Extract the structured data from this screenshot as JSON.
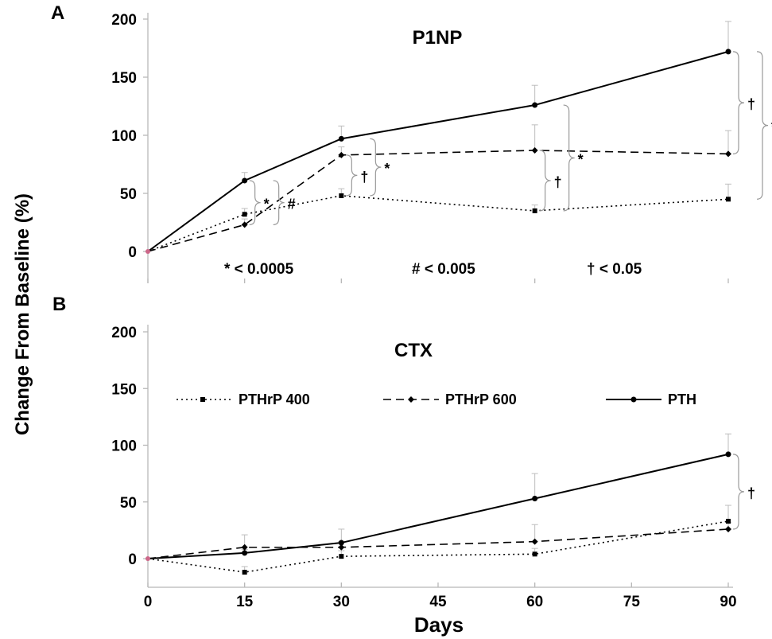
{
  "figure": {
    "ylabel": "Change From Baseline (%)",
    "xlabel": "Days"
  },
  "chart_data": [
    {
      "panel": "A",
      "type": "line",
      "title": "P1NP",
      "x": [
        0,
        15,
        30,
        60,
        90
      ],
      "xlim": [
        0,
        90
      ],
      "ylim": [
        0,
        200
      ],
      "yticks": [
        "0",
        "50",
        "100",
        "150",
        "200"
      ],
      "xticks": [],
      "series": [
        {
          "name": "PTHrP 400",
          "style": "dotted",
          "marker": "square",
          "values": [
            0,
            32,
            48,
            35,
            45
          ],
          "err_upper": [
            0,
            37,
            54,
            40,
            58
          ]
        },
        {
          "name": "PTHrP 600",
          "style": "dashed",
          "marker": "diamond",
          "values": [
            0,
            23,
            83,
            87,
            84
          ],
          "err_upper": [
            0,
            28,
            90,
            109,
            104
          ]
        },
        {
          "name": "PTH",
          "style": "solid",
          "marker": "circle",
          "values": [
            0,
            61,
            97,
            126,
            172
          ],
          "err_upper": [
            0,
            68,
            108,
            143,
            198
          ]
        }
      ],
      "annotations": [
        {
          "symbol": "*",
          "x": 15,
          "from": 23,
          "to": 61
        },
        {
          "symbol": "#",
          "x": 15,
          "from": 23,
          "to": 61
        },
        {
          "symbol": "†",
          "x": 30,
          "from": 48,
          "to": 83
        },
        {
          "symbol": "*",
          "x": 30,
          "from": 48,
          "to": 97
        },
        {
          "symbol": "†",
          "x": 60,
          "from": 35,
          "to": 87
        },
        {
          "symbol": "*",
          "x": 60,
          "from": 35,
          "to": 126
        },
        {
          "symbol": "†",
          "x": 90,
          "from": 84,
          "to": 172
        },
        {
          "symbol": "*",
          "x": 90,
          "from": 45,
          "to": 172
        }
      ],
      "footnotes": [
        "* < 0.0005",
        "# < 0.005",
        "† < 0.05"
      ]
    },
    {
      "panel": "B",
      "type": "line",
      "title": "CTX",
      "x": [
        0,
        15,
        30,
        60,
        90
      ],
      "xlim": [
        0,
        90
      ],
      "ylim": [
        -20,
        200
      ],
      "yticks": [
        "0",
        "50",
        "100",
        "150",
        "200"
      ],
      "xticks": [
        "0",
        "15",
        "30",
        "45",
        "60",
        "75",
        "90"
      ],
      "legend": "top",
      "series": [
        {
          "name": "PTHrP 400",
          "style": "dotted",
          "marker": "square",
          "values": [
            0,
            -12,
            2,
            4,
            33
          ],
          "err_upper": [
            0,
            -7,
            7,
            9,
            47
          ]
        },
        {
          "name": "PTHrP 600",
          "style": "dashed",
          "marker": "diamond",
          "values": [
            0,
            10,
            10,
            15,
            26
          ],
          "err_upper": [
            0,
            21,
            15,
            30,
            32
          ]
        },
        {
          "name": "PTH",
          "style": "solid",
          "marker": "circle",
          "values": [
            0,
            5,
            14,
            53,
            92
          ],
          "err_upper": [
            0,
            8,
            26,
            75,
            110
          ]
        }
      ],
      "annotations": [
        {
          "symbol": "†",
          "x": 90,
          "from": 26,
          "to": 92
        }
      ]
    }
  ]
}
